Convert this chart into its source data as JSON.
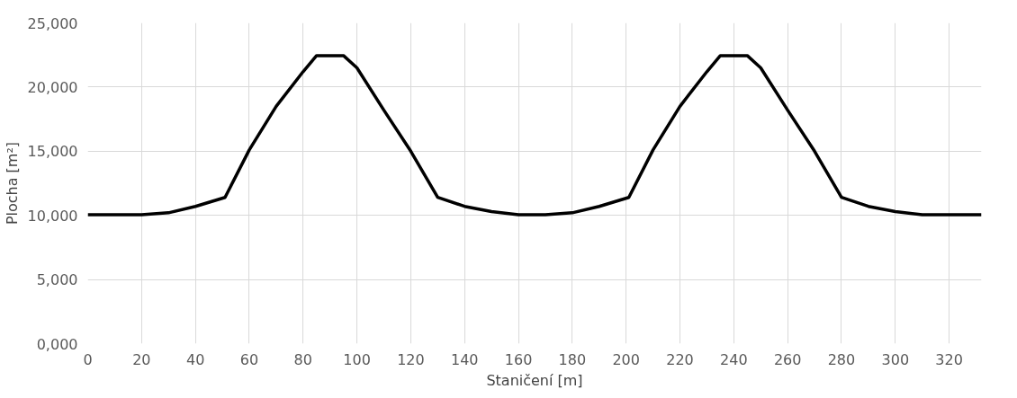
{
  "chart_data": {
    "type": "line",
    "xlabel": "Staničení [m]",
    "ylabel": "Plocha [m²]",
    "x": [
      0,
      20,
      30,
      40,
      51,
      60,
      70,
      80,
      85,
      95,
      100,
      110,
      120,
      130,
      140,
      150,
      160,
      170,
      180,
      190,
      201,
      210,
      220,
      230,
      235,
      245,
      250,
      260,
      270,
      280,
      290,
      300,
      310,
      332
    ],
    "series": [
      {
        "color": "#000000",
        "values": [
          10050,
          10050,
          10200,
          10700,
          11400,
          15100,
          18500,
          21200,
          22450,
          22450,
          21500,
          18200,
          15000,
          11400,
          10700,
          10300,
          10050,
          10050,
          10200,
          10700,
          11400,
          15100,
          18500,
          21200,
          22450,
          22450,
          21500,
          18200,
          15000,
          11400,
          10700,
          10300,
          10050,
          10050
        ]
      }
    ],
    "xlim": [
      0,
      332
    ],
    "xticks": [
      0,
      20,
      40,
      60,
      80,
      100,
      120,
      140,
      160,
      180,
      200,
      220,
      240,
      260,
      280,
      300,
      320
    ],
    "ylim": [
      0,
      25000
    ],
    "yticks": [
      {
        "value": 0,
        "label": "0,000"
      },
      {
        "value": 5000,
        "label": "5,000"
      },
      {
        "value": 10000,
        "label": "10,000"
      },
      {
        "value": 15000,
        "label": "15,000"
      },
      {
        "value": 20000,
        "label": "20,000"
      },
      {
        "value": 25000,
        "label": "25,000"
      }
    ],
    "grid": true,
    "marker": "none",
    "line_style": "solid"
  }
}
